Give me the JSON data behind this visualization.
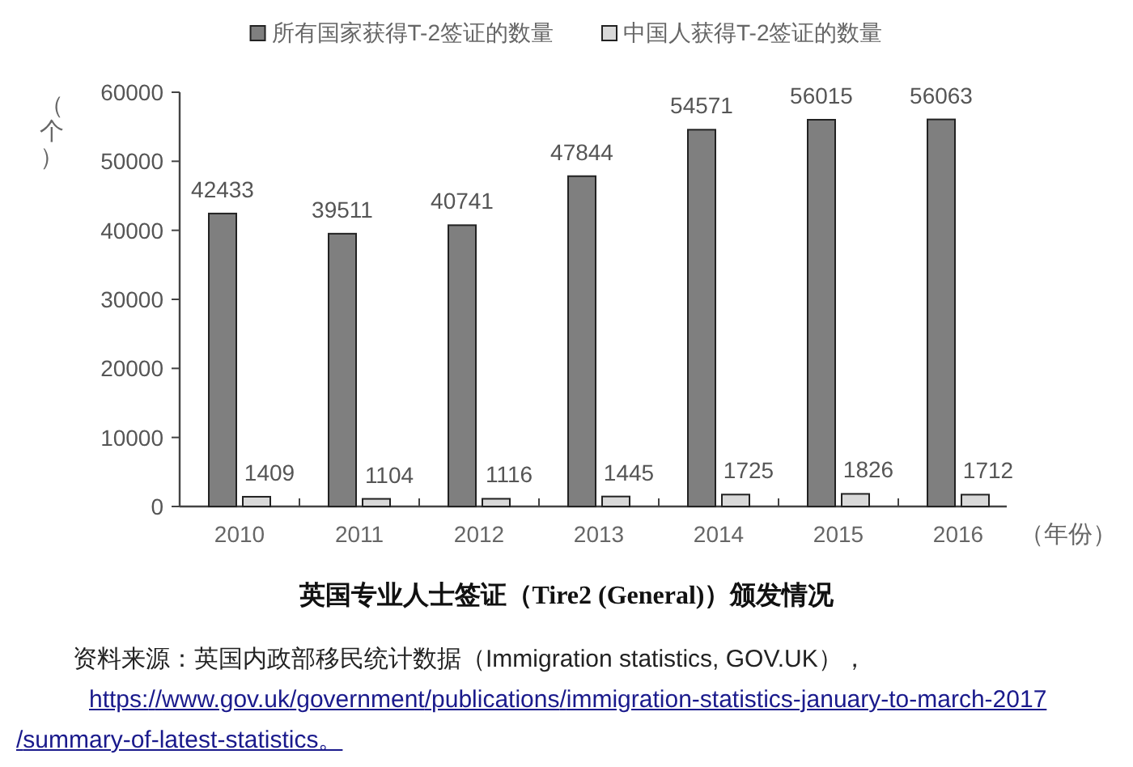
{
  "chart_data": {
    "type": "bar",
    "title": "英国专业人士签证（Tire2 (General)）颁发情况",
    "ylabel": "（个）",
    "xlabel": "（年份）",
    "categories": [
      "2010",
      "2011",
      "2012",
      "2013",
      "2014",
      "2015",
      "2016"
    ],
    "series": [
      {
        "name": "所有国家获得T-2签证的数量",
        "color": "#7f7f7f",
        "values": [
          42433,
          39511,
          40741,
          47844,
          54571,
          56015,
          56063
        ]
      },
      {
        "name": "中国人获得T-2签证的数量",
        "color": "#d9d9d9",
        "values": [
          1409,
          1104,
          1116,
          1445,
          1725,
          1826,
          1712
        ]
      }
    ],
    "ylim": [
      0,
      60000
    ],
    "yticks": [
      0,
      10000,
      20000,
      30000,
      40000,
      50000,
      60000
    ],
    "data_labels": true,
    "legend": "top",
    "grid": false,
    "annotations": [
      "资料来源：英国内政部移民统计数据（Immigration statistics, GOV.UK），",
      "https://www.gov.uk/government/publications/immigration-statistics-january-to-march-2017/summary-of-latest-statistics。"
    ]
  }
}
